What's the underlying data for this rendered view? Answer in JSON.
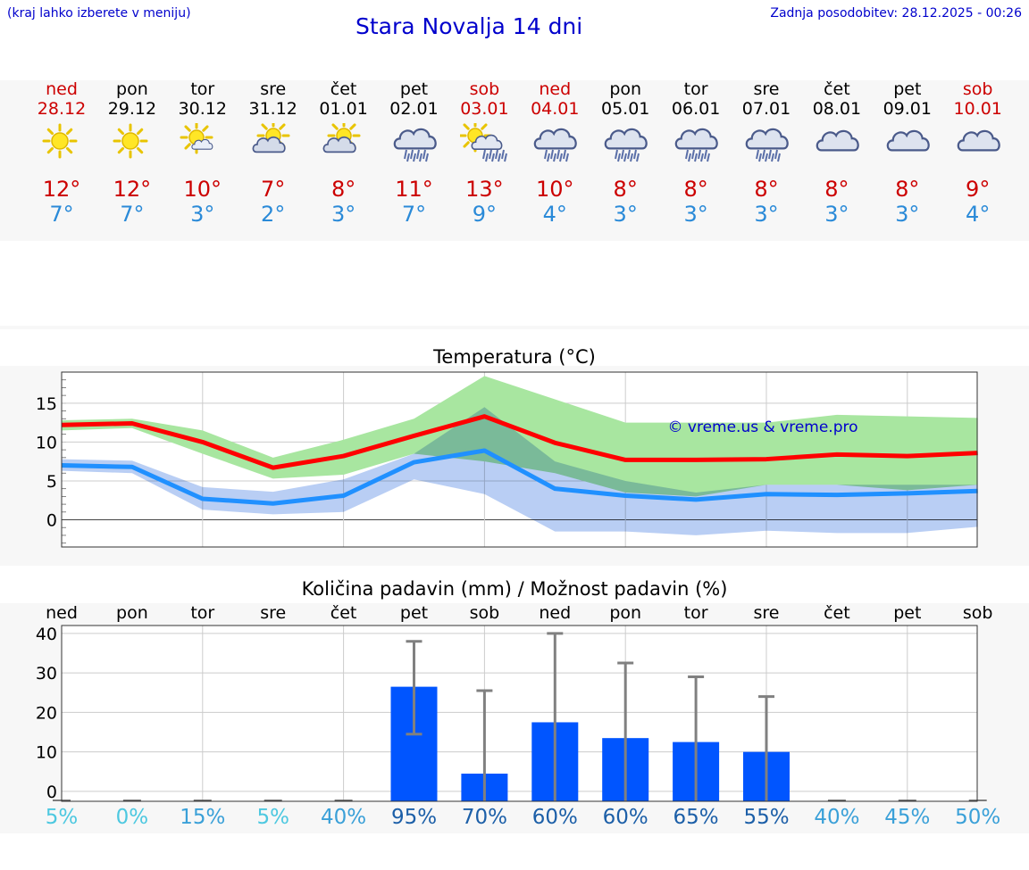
{
  "header": {
    "left_note": "(kraj lahko izberete v meniju)",
    "title": "Stara Novalja 14 dni",
    "updated": "Zadnja posodobitev: 28.12.2025 - 00:26"
  },
  "days": [
    {
      "name": "ned",
      "date": "28.12",
      "weekend": true,
      "icon": "sunny-icon",
      "tmax": "12°",
      "tmin": "7°"
    },
    {
      "name": "pon",
      "date": "29.12",
      "weekend": false,
      "icon": "sunny-icon",
      "tmax": "12°",
      "tmin": "7°"
    },
    {
      "name": "tor",
      "date": "30.12",
      "weekend": false,
      "icon": "sun-small-cloud-icon",
      "tmax": "10°",
      "tmin": "3°"
    },
    {
      "name": "sre",
      "date": "31.12",
      "weekend": false,
      "icon": "partly-cloudy-icon",
      "tmax": "7°",
      "tmin": "2°"
    },
    {
      "name": "čet",
      "date": "01.01",
      "weekend": false,
      "icon": "partly-cloudy-icon",
      "tmax": "8°",
      "tmin": "3°"
    },
    {
      "name": "pet",
      "date": "02.01",
      "weekend": false,
      "icon": "rain-cloud-icon",
      "tmax": "11°",
      "tmin": "7°"
    },
    {
      "name": "sob",
      "date": "03.01",
      "weekend": true,
      "icon": "sun-rain-icon",
      "tmax": "13°",
      "tmin": "9°"
    },
    {
      "name": "ned",
      "date": "04.01",
      "weekend": true,
      "icon": "rain-cloud-icon",
      "tmax": "10°",
      "tmin": "4°"
    },
    {
      "name": "pon",
      "date": "05.01",
      "weekend": false,
      "icon": "rain-cloud-icon",
      "tmax": "8°",
      "tmin": "3°"
    },
    {
      "name": "tor",
      "date": "06.01",
      "weekend": false,
      "icon": "rain-cloud-icon",
      "tmax": "8°",
      "tmin": "3°"
    },
    {
      "name": "sre",
      "date": "07.01",
      "weekend": false,
      "icon": "rain-cloud-icon",
      "tmax": "8°",
      "tmin": "3°"
    },
    {
      "name": "čet",
      "date": "08.01",
      "weekend": false,
      "icon": "cloudy-icon",
      "tmax": "8°",
      "tmin": "3°"
    },
    {
      "name": "pet",
      "date": "09.01",
      "weekend": false,
      "icon": "cloudy-icon",
      "tmax": "8°",
      "tmin": "3°"
    },
    {
      "name": "sob",
      "date": "10.01",
      "weekend": true,
      "icon": "cloudy-icon",
      "tmax": "9°",
      "tmin": "4°"
    }
  ],
  "chart_data": [
    {
      "type": "line",
      "title": "Temperatura (°C)",
      "watermark": "© vreme.us & vreme.pro",
      "ylim": [
        -3.5,
        19
      ],
      "yticks": [
        0,
        5,
        10,
        15
      ],
      "series": [
        {
          "name": "max",
          "color": "#ff0000",
          "values": [
            12.2,
            12.4,
            10.0,
            6.7,
            8.2,
            10.8,
            13.3,
            9.9,
            7.7,
            7.7,
            7.8,
            8.4,
            8.2,
            8.6
          ]
        },
        {
          "name": "min",
          "color": "#2090ff",
          "values": [
            7.0,
            6.8,
            2.7,
            2.1,
            3.1,
            7.4,
            8.9,
            4.0,
            3.1,
            2.6,
            3.3,
            3.2,
            3.4,
            3.7
          ]
        }
      ],
      "bands": [
        {
          "name": "max-range",
          "color": "#a8e6a0",
          "upper": [
            12.8,
            13.0,
            11.5,
            8.0,
            10.3,
            13.0,
            18.5,
            15.5,
            12.5,
            12.5,
            12.5,
            13.5,
            13.3,
            13.1
          ],
          "lower": [
            11.5,
            11.8,
            8.5,
            5.3,
            5.8,
            8.5,
            7.5,
            6.0,
            3.5,
            3.0,
            4.5,
            4.5,
            3.8,
            4.5
          ]
        },
        {
          "name": "min-range",
          "color": "#adc6f2",
          "upper": [
            7.8,
            7.6,
            4.2,
            3.6,
            5.2,
            8.5,
            14.5,
            7.5,
            5.0,
            3.5,
            4.5,
            4.5,
            4.5,
            4.5
          ],
          "lower": [
            6.3,
            6.0,
            1.3,
            0.7,
            1.0,
            5.2,
            3.3,
            -1.5,
            -1.5,
            -2.0,
            -1.4,
            -1.7,
            -1.7,
            -0.9
          ]
        }
      ]
    },
    {
      "type": "bar",
      "title": "Količina padavin (mm) / Možnost padavin (%)",
      "categories": [
        "ned",
        "pon",
        "tor",
        "sre",
        "čet",
        "pet",
        "sob",
        "ned",
        "pon",
        "tor",
        "sre",
        "čet",
        "pet",
        "sob"
      ],
      "ylim": [
        -2.5,
        42
      ],
      "yticks": [
        0,
        10,
        20,
        30,
        40
      ],
      "values": [
        0,
        0,
        0,
        0,
        0,
        26.5,
        4.5,
        17.5,
        13.5,
        12.5,
        10,
        0,
        0,
        0
      ],
      "error_upper": [
        0,
        0,
        0,
        0,
        0,
        38,
        25.5,
        40,
        32.5,
        29,
        24,
        0,
        0,
        0
      ],
      "error_lower": [
        0,
        0,
        0,
        0,
        0,
        14.5,
        0,
        0,
        0,
        0,
        0,
        0,
        0,
        0
      ],
      "bar_color": "#0055ff",
      "chance": [
        "5%",
        "0%",
        "15%",
        "5%",
        "40%",
        "95%",
        "70%",
        "60%",
        "60%",
        "65%",
        "55%",
        "40%",
        "45%",
        "50%"
      ],
      "chance_colors": [
        "#4dc8e0",
        "#4dc8e0",
        "#3aa0d8",
        "#4dc8e0",
        "#3aa0d8",
        "#1c5fa8",
        "#1c5fa8",
        "#1c5fa8",
        "#1c5fa8",
        "#1c5fa8",
        "#1c5fa8",
        "#3aa0d8",
        "#3aa0d8",
        "#3aa0d8"
      ]
    }
  ]
}
